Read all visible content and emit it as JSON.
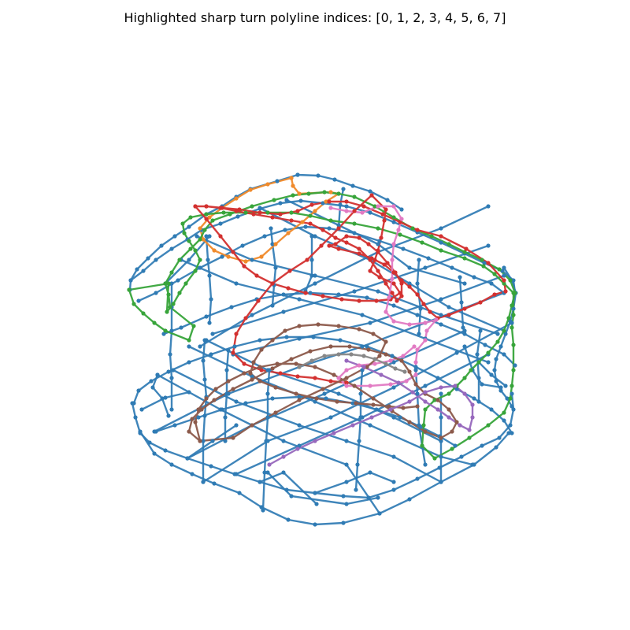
{
  "figure": {
    "title": "Highlighted sharp turn polyline indices: [0, 1, 2, 3, 4, 5, 6, 7]"
  },
  "colors": {
    "base": "#2f7bb4",
    "orange": "#f08a2b",
    "green": "#37a43a",
    "red": "#d3302f",
    "pink": "#e27ac3",
    "brown": "#8c5a4b",
    "purple": "#9768bd",
    "gray": "#878787"
  }
}
